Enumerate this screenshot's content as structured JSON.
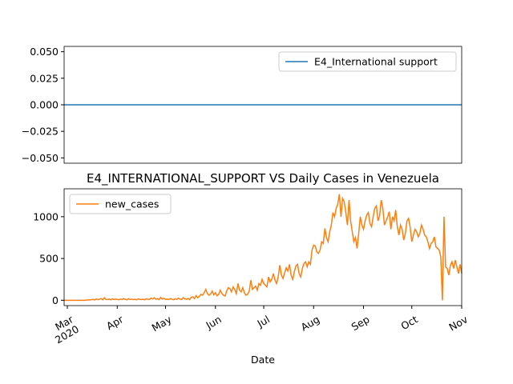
{
  "chart_data": [
    {
      "type": "line",
      "series": [
        {
          "name": "E4_International support",
          "color": "#1f77b4",
          "values": [
            0,
            0,
            0,
            0,
            0,
            0,
            0,
            0,
            0,
            0,
            0,
            0,
            0,
            0,
            0,
            0,
            0,
            0,
            0,
            0,
            0,
            0,
            0,
            0,
            0,
            0,
            0,
            0,
            0,
            0,
            0,
            0,
            0,
            0,
            0,
            0,
            0,
            0,
            0,
            0,
            0,
            0,
            0,
            0,
            0,
            0,
            0,
            0,
            0,
            0,
            0,
            0,
            0,
            0,
            0,
            0,
            0,
            0,
            0,
            0,
            0,
            0,
            0,
            0,
            0,
            0,
            0,
            0,
            0,
            0,
            0,
            0,
            0,
            0,
            0,
            0,
            0,
            0,
            0,
            0,
            0,
            0,
            0,
            0,
            0,
            0,
            0,
            0,
            0,
            0,
            0,
            0,
            0,
            0,
            0,
            0,
            0,
            0,
            0,
            0,
            0,
            0,
            0,
            0,
            0,
            0,
            0,
            0,
            0,
            0,
            0,
            0,
            0,
            0,
            0,
            0,
            0,
            0,
            0,
            0,
            0,
            0,
            0,
            0,
            0,
            0,
            0,
            0,
            0,
            0,
            0,
            0,
            0,
            0,
            0,
            0,
            0,
            0,
            0,
            0,
            0,
            0,
            0,
            0,
            0,
            0,
            0,
            0,
            0,
            0,
            0,
            0,
            0,
            0,
            0,
            0,
            0,
            0,
            0,
            0,
            0,
            0,
            0,
            0,
            0,
            0,
            0,
            0,
            0,
            0,
            0,
            0,
            0,
            0,
            0,
            0,
            0,
            0,
            0,
            0,
            0,
            0,
            0,
            0,
            0,
            0,
            0,
            0,
            0,
            0,
            0,
            0,
            0,
            0,
            0,
            0,
            0,
            0,
            0,
            0,
            0,
            0,
            0,
            0,
            0,
            0,
            0,
            0,
            0,
            0,
            0,
            0,
            0,
            0,
            0,
            0,
            0,
            0,
            0,
            0,
            0,
            0,
            0,
            0,
            0,
            0,
            0,
            0,
            0,
            0,
            0,
            0,
            0,
            0,
            0,
            0,
            0,
            0,
            0,
            0,
            0,
            0,
            0,
            0,
            0,
            0,
            0,
            0
          ]
        }
      ],
      "xlim": [
        0,
        247
      ],
      "ylim": [
        -0.055,
        0.055
      ],
      "yticks": [
        {
          "value": -0.05,
          "label": "−0.050"
        },
        {
          "value": -0.025,
          "label": "−0.025"
        },
        {
          "value": 0,
          "label": "0.000"
        },
        {
          "value": 0.025,
          "label": "0.025"
        },
        {
          "value": 0.05,
          "label": "0.050"
        }
      ],
      "legend": "upper right"
    },
    {
      "type": "line",
      "title": "E4_INTERNATIONAL_SUPPORT VS Daily Cases in Venezuela",
      "xlabel": "Date",
      "series": [
        {
          "name": "new_cases",
          "color": "#ff7f0e",
          "values": [
            0,
            0,
            0,
            0,
            0,
            0,
            0,
            0,
            0,
            0,
            0,
            0,
            0,
            0,
            2,
            5,
            3,
            8,
            10,
            4,
            15,
            7,
            12,
            20,
            6,
            30,
            10,
            8,
            14,
            5,
            18,
            9,
            12,
            10,
            6,
            15,
            8,
            20,
            12,
            5,
            18,
            9,
            14,
            7,
            11,
            6,
            16,
            10,
            8,
            13,
            5,
            19,
            11,
            9,
            25,
            15,
            30,
            12,
            20,
            8,
            35,
            14,
            22,
            10,
            15,
            8,
            20,
            12,
            6,
            18,
            10,
            25,
            14,
            9,
            30,
            16,
            11,
            22,
            8,
            35,
            40,
            20,
            55,
            30,
            45,
            70,
            60,
            90,
            130,
            80,
            60,
            75,
            110,
            65,
            90,
            55,
            70,
            120,
            80,
            60,
            50,
            110,
            150,
            140,
            100,
            160,
            130,
            80,
            200,
            120,
            100,
            150,
            90,
            60,
            70,
            110,
            240,
            130,
            150,
            170,
            120,
            200,
            180,
            250,
            200,
            180,
            160,
            280,
            220,
            250,
            320,
            240,
            200,
            280,
            420,
            300,
            260,
            330,
            390,
            350,
            430,
            300,
            250,
            340,
            410,
            430,
            320,
            280,
            380,
            440,
            460,
            400,
            460,
            430,
            600,
            660,
            650,
            580,
            560,
            600,
            700,
            680,
            860,
            750,
            700,
            820,
            900,
            1050,
            1000,
            1100,
            1150,
            1270,
            1000,
            1220,
            1180,
            1050,
            900,
            1200,
            950,
            820,
            700,
            750,
            620,
            800,
            1000,
            900,
            850,
            950,
            1020,
            1050,
            920,
            880,
            1000,
            1100,
            1130,
            950,
            1010,
            1200,
            1100,
            900,
            950,
            1000,
            1060,
            850,
            1000,
            950,
            1080,
            880,
            780,
            900,
            850,
            720,
            800,
            950,
            980,
            870,
            700,
            780,
            850,
            820,
            760,
            800,
            900,
            850,
            780,
            760,
            700,
            620,
            680,
            700,
            760,
            640,
            620,
            600,
            520,
            0,
            1000,
            400,
            380,
            300,
            420,
            460,
            380,
            480,
            400,
            320,
            430,
            320
          ]
        }
      ],
      "xlim": [
        0,
        247
      ],
      "xticks": [
        {
          "value": 2,
          "label": "Mar\n2020"
        },
        {
          "value": 33,
          "label": "Apr"
        },
        {
          "value": 63,
          "label": "May"
        },
        {
          "value": 94,
          "label": "Jun"
        },
        {
          "value": 124,
          "label": "Jul"
        },
        {
          "value": 155,
          "label": "Aug"
        },
        {
          "value": 186,
          "label": "Sep"
        },
        {
          "value": 216,
          "label": "Oct"
        },
        {
          "value": 247,
          "label": "Nov"
        }
      ],
      "ylim": [
        -64,
        1334
      ],
      "yticks": [
        0,
        500,
        1000
      ],
      "legend": "upper left"
    }
  ]
}
